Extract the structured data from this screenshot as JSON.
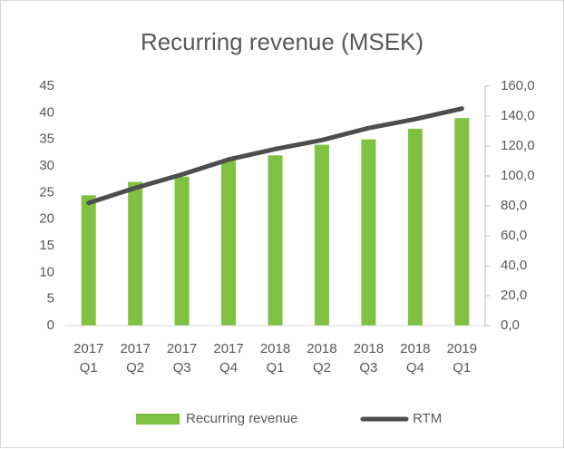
{
  "chart_data": {
    "type": "bar_line",
    "title": "Recurring revenue (MSEK)",
    "categories": [
      "2017\nQ1",
      "2017\nQ2",
      "2017\nQ3",
      "2017\nQ4",
      "2018\nQ1",
      "2018\nQ2",
      "2018\nQ3",
      "2018\nQ4",
      "2019\nQ1"
    ],
    "series": [
      {
        "name": "Recurring revenue",
        "type": "bar",
        "color": "#7fc241",
        "values": [
          24.5,
          27,
          28,
          31,
          32,
          34,
          35,
          37,
          39
        ]
      },
      {
        "name": "RTM",
        "type": "line",
        "axis": "y2",
        "color": "#4d4d4d",
        "values": [
          82,
          92,
          101,
          111,
          118,
          124,
          132,
          138,
          145
        ]
      }
    ],
    "ylim": [
      0,
      45
    ],
    "yticks": [
      0,
      5,
      10,
      15,
      20,
      25,
      30,
      35,
      40,
      45
    ],
    "y2lim": [
      0,
      160
    ],
    "y2ticks": [
      {
        "value": 0,
        "label": "0,0"
      },
      {
        "value": 20,
        "label": "20,0"
      },
      {
        "value": 40,
        "label": "40,0"
      },
      {
        "value": 60,
        "label": "60,0"
      },
      {
        "value": 80,
        "label": "80,0"
      },
      {
        "value": 100,
        "label": "100,0"
      },
      {
        "value": 120,
        "label": "120,0"
      },
      {
        "value": 140,
        "label": "140,0"
      },
      {
        "value": 160,
        "label": "160,0"
      }
    ],
    "legend": "bottom"
  }
}
